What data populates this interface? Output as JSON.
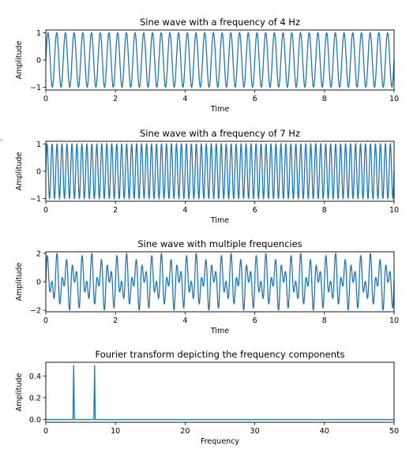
{
  "stray_mark": ".",
  "chart_data": [
    {
      "type": "line",
      "title": "Sine wave with a frequency of 4 Hz",
      "xlabel": "Time",
      "ylabel": "Amplitude",
      "xlim": [
        0,
        10
      ],
      "ylim": [
        -1.1,
        1.1
      ],
      "xticks": [
        "0",
        "2",
        "4",
        "6",
        "8",
        "10"
      ],
      "yticks": [
        "1",
        "0",
        "−1"
      ],
      "xtick_values": [
        0,
        2,
        4,
        6,
        8,
        10
      ],
      "ytick_values": [
        1,
        0,
        -1
      ],
      "grid": false,
      "color": "#1f77b4",
      "series": [
        {
          "function": "sin",
          "components": [
            {
              "frequency_hz": 4,
              "amplitude": 1
            }
          ],
          "x_start": 0,
          "x_end": 10
        }
      ]
    },
    {
      "type": "line",
      "title": "Sine wave with a frequency of 7 Hz",
      "xlabel": "Time",
      "ylabel": "Amplitude",
      "xlim": [
        0,
        10
      ],
      "ylim": [
        -1.1,
        1.1
      ],
      "xticks": [
        "0",
        "2",
        "4",
        "6",
        "8",
        "10"
      ],
      "yticks": [
        "1",
        "0",
        "−1"
      ],
      "xtick_values": [
        0,
        2,
        4,
        6,
        8,
        10
      ],
      "ytick_values": [
        1,
        0,
        -1
      ],
      "grid": false,
      "color": "#1f77b4",
      "series": [
        {
          "function": "sin",
          "components": [
            {
              "frequency_hz": 7,
              "amplitude": 1
            }
          ],
          "x_start": 0,
          "x_end": 10
        }
      ]
    },
    {
      "type": "line",
      "title": "Sine wave with multiple frequencies",
      "xlabel": "Time",
      "ylabel": "Amplitude",
      "xlim": [
        0,
        10
      ],
      "ylim": [
        -2.1,
        2.1
      ],
      "xticks": [
        "0",
        "2",
        "4",
        "6",
        "8",
        "10"
      ],
      "yticks": [
        "2",
        "0",
        "−2"
      ],
      "xtick_values": [
        0,
        2,
        4,
        6,
        8,
        10
      ],
      "ytick_values": [
        2,
        0,
        -2
      ],
      "grid": false,
      "color": "#1f77b4",
      "series": [
        {
          "function": "sin",
          "components": [
            {
              "frequency_hz": 4,
              "amplitude": 1
            },
            {
              "frequency_hz": 7,
              "amplitude": 1
            }
          ],
          "x_start": 0,
          "x_end": 10
        }
      ]
    },
    {
      "type": "line",
      "title": "Fourier transform depicting the frequency components",
      "xlabel": "Frequency",
      "ylabel": "Amplitude",
      "xlim": [
        0,
        50
      ],
      "ylim": [
        -0.025,
        0.525
      ],
      "xticks": [
        "0",
        "10",
        "20",
        "30",
        "40",
        "50"
      ],
      "yticks": [
        "0.4",
        "0.2",
        "0.0"
      ],
      "xtick_values": [
        0,
        10,
        20,
        30,
        40,
        50
      ],
      "ytick_values": [
        0.4,
        0.2,
        0.0
      ],
      "grid": false,
      "color": "#1f77b4",
      "x": [
        0,
        3.9,
        4,
        4.1,
        6.9,
        7,
        7.1,
        50
      ],
      "values": [
        0,
        0,
        0.5,
        0,
        0,
        0.5,
        0,
        0
      ]
    }
  ]
}
